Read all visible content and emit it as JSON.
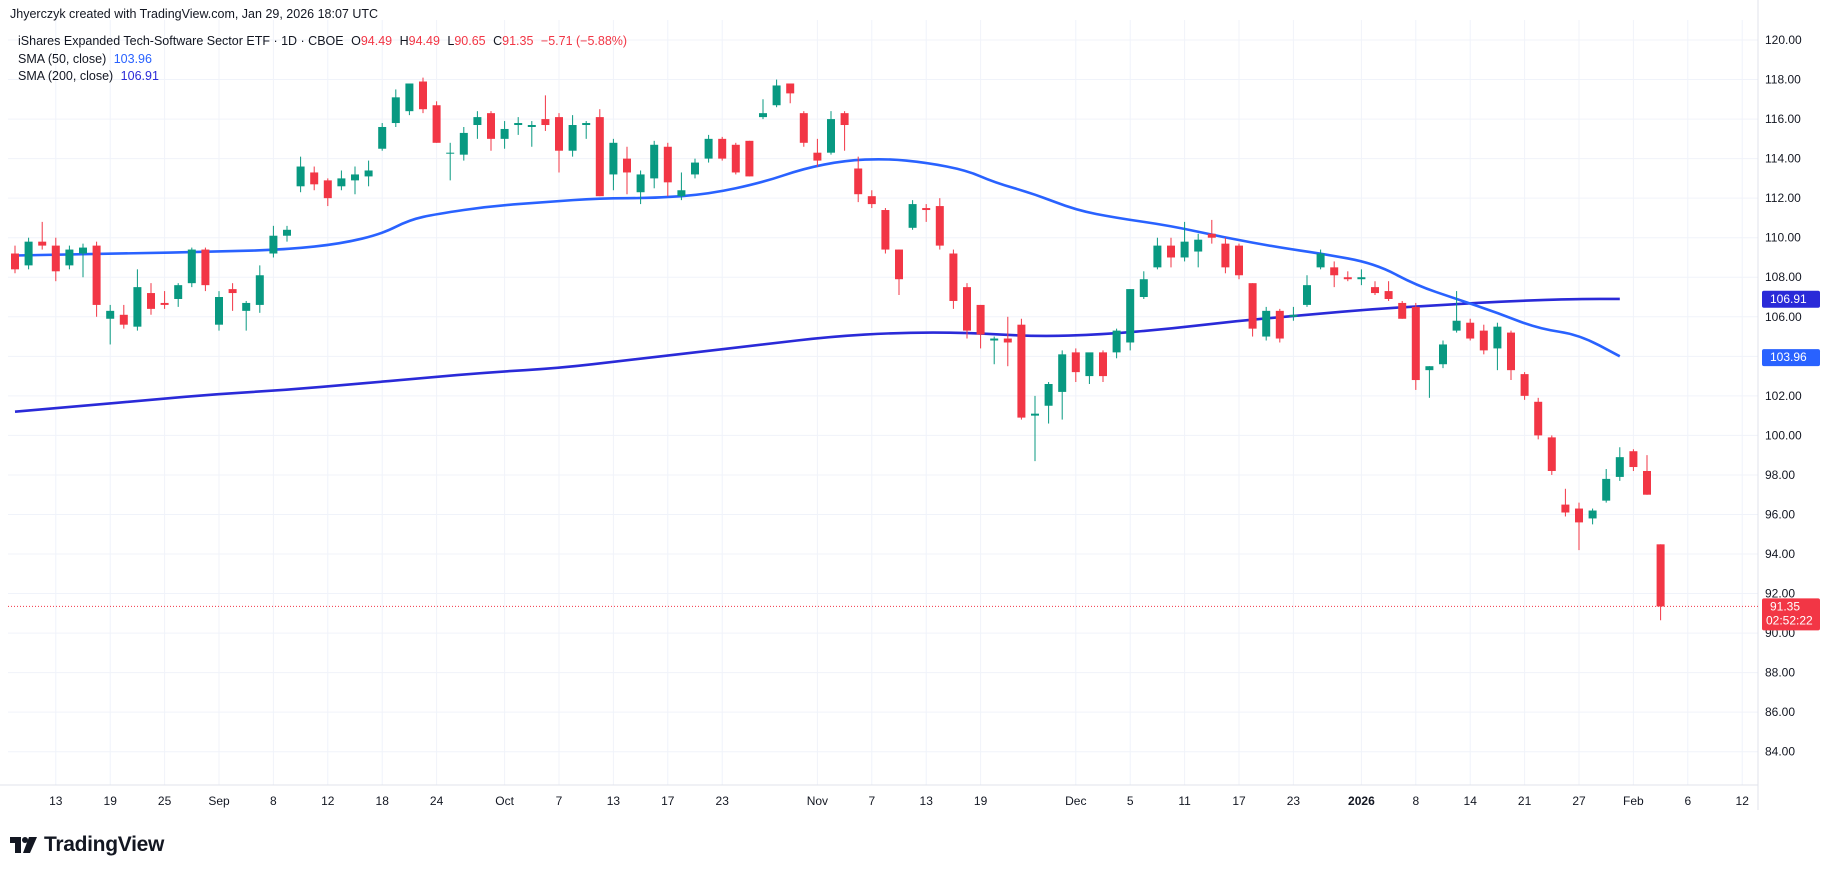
{
  "header": {
    "created_by": "Jhyerczyk created with TradingView.com, Jan 29, 2026 18:07 UTC"
  },
  "legend": {
    "symbol_name": "iShares Expanded Tech-Software Sector ETF · 1D · CBOE",
    "open_label": "O",
    "open_value": "94.49",
    "high_label": "H",
    "high_value": "94.49",
    "low_label": "L",
    "low_value": "90.65",
    "close_label": "C",
    "close_value": "91.35",
    "change_value": "−5.71 (−5.88%)",
    "sma50_label": "SMA (50, close)",
    "sma50_value": "103.96",
    "sma200_label": "SMA (200, close)",
    "sma200_value": "106.91"
  },
  "branding": {
    "logo_text": "TradingView"
  },
  "price_badges": {
    "sma200": "106.91",
    "sma50": "103.96",
    "last_price": "91.35",
    "countdown": "02:52:22"
  },
  "colors": {
    "up": "#089981",
    "down": "#f23645",
    "sma50": "#2962ff",
    "sma200": "#2a2ad8",
    "grid": "#f0f3fa",
    "text": "#131722"
  },
  "chart_data": {
    "type": "candlestick",
    "ylim": [
      82.3,
      121.0
    ],
    "y_ticks": [
      "84.00",
      "86.00",
      "88.00",
      "90.00",
      "92.00",
      "94.00",
      "96.00",
      "98.00",
      "100.00",
      "102.00",
      "104.00",
      "106.00",
      "108.00",
      "110.00",
      "112.00",
      "114.00",
      "116.00",
      "118.00",
      "120.00"
    ],
    "x_tick_labels": [
      {
        "i": 3,
        "label": "13",
        "bold": false
      },
      {
        "i": 7,
        "label": "19",
        "bold": false
      },
      {
        "i": 11,
        "label": "25",
        "bold": false
      },
      {
        "i": 15,
        "label": "Sep",
        "bold": false
      },
      {
        "i": 19,
        "label": "8",
        "bold": false
      },
      {
        "i": 23,
        "label": "12",
        "bold": false
      },
      {
        "i": 27,
        "label": "18",
        "bold": false
      },
      {
        "i": 31,
        "label": "24",
        "bold": false
      },
      {
        "i": 36,
        "label": "Oct",
        "bold": false
      },
      {
        "i": 40,
        "label": "7",
        "bold": false
      },
      {
        "i": 44,
        "label": "13",
        "bold": false
      },
      {
        "i": 48,
        "label": "17",
        "bold": false
      },
      {
        "i": 52,
        "label": "23",
        "bold": false
      },
      {
        "i": 59,
        "label": "Nov",
        "bold": false
      },
      {
        "i": 63,
        "label": "7",
        "bold": false
      },
      {
        "i": 67,
        "label": "13",
        "bold": false
      },
      {
        "i": 71,
        "label": "19",
        "bold": false
      },
      {
        "i": 78,
        "label": "Dec",
        "bold": false
      },
      {
        "i": 82,
        "label": "5",
        "bold": false
      },
      {
        "i": 86,
        "label": "11",
        "bold": false
      },
      {
        "i": 90,
        "label": "17",
        "bold": false
      },
      {
        "i": 94,
        "label": "23",
        "bold": false
      },
      {
        "i": 99,
        "label": "2026",
        "bold": true
      },
      {
        "i": 103,
        "label": "8",
        "bold": false
      },
      {
        "i": 107,
        "label": "14",
        "bold": false
      },
      {
        "i": 111,
        "label": "21",
        "bold": false
      },
      {
        "i": 115,
        "label": "27",
        "bold": false
      },
      {
        "i": 119,
        "label": "Feb",
        "bold": false
      },
      {
        "i": 123,
        "label": "6",
        "bold": false
      },
      {
        "i": 127,
        "label": "12",
        "bold": false
      }
    ],
    "candles": [
      [
        109.2,
        109.6,
        108.2,
        108.4
      ],
      [
        108.6,
        110.0,
        108.4,
        109.8
      ],
      [
        109.8,
        110.8,
        109.4,
        109.6
      ],
      [
        109.6,
        110.0,
        107.8,
        108.3
      ],
      [
        108.6,
        109.6,
        108.4,
        109.4
      ],
      [
        109.2,
        109.7,
        108.0,
        109.5
      ],
      [
        109.6,
        109.8,
        106.0,
        106.6
      ],
      [
        105.9,
        106.6,
        104.6,
        106.3
      ],
      [
        106.1,
        106.6,
        105.4,
        105.6
      ],
      [
        105.5,
        108.4,
        105.3,
        107.5
      ],
      [
        107.2,
        107.7,
        106.1,
        106.4
      ],
      [
        106.7,
        107.3,
        106.4,
        106.6
      ],
      [
        106.9,
        107.7,
        106.5,
        107.6
      ],
      [
        107.7,
        109.5,
        107.5,
        109.4
      ],
      [
        109.4,
        109.5,
        107.3,
        107.6
      ],
      [
        105.6,
        107.3,
        105.3,
        107.0
      ],
      [
        107.4,
        107.7,
        106.3,
        107.2
      ],
      [
        106.3,
        106.8,
        105.3,
        106.7
      ],
      [
        106.6,
        108.6,
        106.2,
        108.1
      ],
      [
        109.2,
        110.6,
        109.0,
        110.1
      ],
      [
        110.1,
        110.6,
        109.8,
        110.4
      ],
      [
        112.6,
        114.1,
        112.3,
        113.6
      ],
      [
        113.3,
        113.6,
        112.4,
        112.7
      ],
      [
        112.9,
        113.0,
        111.6,
        112.0
      ],
      [
        112.6,
        113.4,
        112.4,
        113.0
      ],
      [
        112.9,
        113.6,
        112.2,
        113.2
      ],
      [
        113.1,
        113.9,
        112.6,
        113.4
      ],
      [
        114.5,
        115.8,
        114.4,
        115.6
      ],
      [
        115.8,
        117.5,
        115.6,
        117.1
      ],
      [
        116.4,
        117.8,
        116.2,
        117.8
      ],
      [
        117.9,
        118.1,
        116.3,
        116.5
      ],
      [
        116.7,
        116.9,
        114.8,
        114.8
      ],
      [
        114.3,
        114.8,
        112.9,
        114.3
      ],
      [
        114.2,
        115.6,
        113.9,
        115.3
      ],
      [
        115.7,
        116.4,
        115.0,
        116.1
      ],
      [
        116.3,
        116.4,
        114.4,
        115.0
      ],
      [
        115.0,
        115.9,
        114.5,
        115.5
      ],
      [
        115.7,
        116.1,
        115.2,
        115.8
      ],
      [
        115.6,
        115.9,
        114.6,
        115.7
      ],
      [
        116.0,
        117.2,
        115.4,
        115.7
      ],
      [
        116.1,
        116.3,
        113.3,
        114.4
      ],
      [
        114.4,
        116.2,
        114.1,
        115.7
      ],
      [
        115.7,
        115.9,
        115.0,
        115.8
      ],
      [
        116.1,
        116.5,
        112.1,
        112.1
      ],
      [
        113.2,
        115.0,
        112.4,
        114.8
      ],
      [
        114.0,
        114.6,
        112.2,
        113.3
      ],
      [
        112.3,
        113.4,
        111.7,
        113.2
      ],
      [
        113.0,
        114.9,
        112.5,
        114.7
      ],
      [
        114.6,
        114.8,
        112.1,
        112.8
      ],
      [
        112.1,
        113.3,
        111.9,
        112.4
      ],
      [
        113.2,
        114.0,
        113.0,
        113.8
      ],
      [
        114.0,
        115.2,
        113.8,
        115.0
      ],
      [
        115.0,
        115.1,
        113.9,
        114.0
      ],
      [
        114.7,
        114.8,
        113.2,
        113.3
      ],
      [
        114.9,
        114.9,
        113.1,
        113.1
      ],
      [
        116.1,
        117.0,
        116.0,
        116.3
      ],
      [
        116.7,
        118.0,
        116.6,
        117.7
      ],
      [
        117.8,
        117.8,
        116.8,
        117.3
      ],
      [
        116.3,
        116.4,
        114.6,
        114.8
      ],
      [
        114.3,
        115.0,
        113.6,
        113.9
      ],
      [
        114.3,
        116.4,
        114.2,
        116.0
      ],
      [
        116.3,
        116.4,
        114.4,
        115.7
      ],
      [
        113.5,
        114.1,
        111.8,
        112.2
      ],
      [
        112.1,
        112.4,
        111.5,
        111.7
      ],
      [
        111.4,
        111.5,
        109.2,
        109.4
      ],
      [
        109.4,
        109.4,
        107.1,
        107.9
      ],
      [
        110.5,
        111.9,
        110.4,
        111.7
      ],
      [
        111.5,
        111.7,
        110.8,
        111.4
      ],
      [
        111.6,
        112.0,
        109.4,
        109.6
      ],
      [
        109.2,
        109.4,
        106.4,
        106.8
      ],
      [
        107.5,
        107.7,
        104.9,
        105.3
      ],
      [
        106.6,
        106.6,
        104.4,
        105.1
      ],
      [
        104.8,
        105.0,
        103.6,
        104.9
      ],
      [
        104.9,
        106.0,
        103.5,
        104.7
      ],
      [
        105.6,
        105.9,
        100.8,
        100.9
      ],
      [
        101.0,
        102.0,
        98.7,
        101.1
      ],
      [
        101.5,
        102.7,
        100.6,
        102.6
      ],
      [
        102.2,
        104.3,
        100.8,
        104.1
      ],
      [
        104.2,
        104.4,
        102.7,
        103.2
      ],
      [
        103.0,
        104.1,
        102.6,
        104.2
      ],
      [
        104.2,
        104.3,
        102.7,
        103.0
      ],
      [
        104.2,
        105.4,
        103.9,
        105.3
      ],
      [
        104.7,
        107.4,
        104.3,
        107.4
      ],
      [
        107.0,
        108.3,
        106.9,
        107.9
      ],
      [
        108.5,
        110.0,
        108.4,
        109.6
      ],
      [
        109.6,
        110.0,
        108.5,
        109.0
      ],
      [
        109.0,
        110.8,
        108.8,
        109.8
      ],
      [
        109.3,
        110.2,
        108.5,
        109.9
      ],
      [
        110.2,
        110.9,
        109.7,
        110.0
      ],
      [
        109.7,
        110.0,
        108.2,
        108.5
      ],
      [
        109.6,
        109.7,
        107.9,
        108.1
      ],
      [
        107.7,
        107.7,
        105.0,
        105.4
      ],
      [
        105.0,
        106.5,
        104.8,
        106.3
      ],
      [
        106.3,
        106.4,
        104.7,
        104.9
      ],
      [
        106.0,
        106.5,
        105.8,
        106.1
      ],
      [
        106.6,
        108.1,
        106.5,
        107.6
      ],
      [
        108.5,
        109.4,
        108.4,
        109.2
      ],
      [
        108.5,
        108.8,
        107.5,
        108.1
      ],
      [
        108.0,
        108.3,
        107.8,
        107.9
      ],
      [
        107.9,
        108.4,
        107.6,
        108.0
      ],
      [
        107.5,
        107.8,
        107.1,
        107.2
      ],
      [
        107.3,
        107.8,
        106.8,
        106.9
      ],
      [
        106.7,
        106.8,
        105.9,
        105.9
      ],
      [
        106.5,
        106.7,
        102.3,
        102.8
      ],
      [
        103.3,
        103.5,
        101.9,
        103.5
      ],
      [
        103.6,
        104.8,
        103.4,
        104.6
      ],
      [
        105.3,
        107.3,
        105.2,
        105.8
      ],
      [
        105.7,
        105.9,
        104.8,
        104.9
      ],
      [
        105.3,
        105.6,
        104.1,
        104.3
      ],
      [
        104.4,
        105.7,
        103.3,
        105.5
      ],
      [
        105.2,
        105.3,
        102.8,
        103.3
      ],
      [
        103.1,
        103.2,
        101.8,
        102.0
      ],
      [
        101.7,
        101.9,
        99.8,
        100.0
      ],
      [
        99.9,
        100.0,
        98.0,
        98.2
      ],
      [
        96.5,
        97.3,
        95.9,
        96.1
      ],
      [
        96.3,
        96.6,
        94.2,
        95.6
      ],
      [
        95.8,
        96.3,
        95.5,
        96.2
      ],
      [
        96.7,
        98.3,
        96.6,
        97.8
      ],
      [
        97.9,
        99.4,
        97.7,
        98.9
      ],
      [
        99.2,
        99.3,
        98.2,
        98.4
      ],
      [
        98.2,
        99.0,
        97.0,
        97.0
      ],
      [
        94.49,
        94.49,
        90.65,
        91.35
      ]
    ],
    "sma50_anchors": [
      [
        0,
        109.1
      ],
      [
        8,
        109.2
      ],
      [
        15,
        109.3
      ],
      [
        20,
        109.4
      ],
      [
        24,
        109.7
      ],
      [
        27,
        110.2
      ],
      [
        29,
        110.9
      ],
      [
        31,
        111.2
      ],
      [
        35,
        111.6
      ],
      [
        39,
        111.8
      ],
      [
        43,
        112.0
      ],
      [
        47,
        112.0
      ],
      [
        51,
        112.2
      ],
      [
        55,
        112.8
      ],
      [
        58,
        113.5
      ],
      [
        61,
        113.9
      ],
      [
        64,
        114.0
      ],
      [
        67,
        113.8
      ],
      [
        70,
        113.4
      ],
      [
        72,
        112.8
      ],
      [
        75,
        112.2
      ],
      [
        78,
        111.4
      ],
      [
        81,
        111.0
      ],
      [
        85,
        110.6
      ],
      [
        89,
        110.0
      ],
      [
        93,
        109.5
      ],
      [
        96,
        109.2
      ],
      [
        100,
        108.7
      ],
      [
        103,
        107.6
      ],
      [
        106,
        106.9
      ],
      [
        109,
        106.2
      ],
      [
        112,
        105.4
      ],
      [
        115,
        105.1
      ],
      [
        118,
        104.0
      ]
    ],
    "sma200_anchors": [
      [
        0,
        101.2
      ],
      [
        5,
        101.5
      ],
      [
        10,
        101.8
      ],
      [
        15,
        102.1
      ],
      [
        20,
        102.3
      ],
      [
        25,
        102.6
      ],
      [
        30,
        102.9
      ],
      [
        35,
        103.2
      ],
      [
        40,
        103.4
      ],
      [
        45,
        103.8
      ],
      [
        50,
        104.2
      ],
      [
        55,
        104.6
      ],
      [
        60,
        105.0
      ],
      [
        65,
        105.2
      ],
      [
        70,
        105.2
      ],
      [
        75,
        105.0
      ],
      [
        80,
        105.1
      ],
      [
        85,
        105.4
      ],
      [
        90,
        105.8
      ],
      [
        95,
        106.1
      ],
      [
        100,
        106.4
      ],
      [
        105,
        106.6
      ],
      [
        110,
        106.8
      ],
      [
        115,
        106.9
      ],
      [
        118,
        106.9
      ]
    ],
    "last_price": 91.35
  }
}
